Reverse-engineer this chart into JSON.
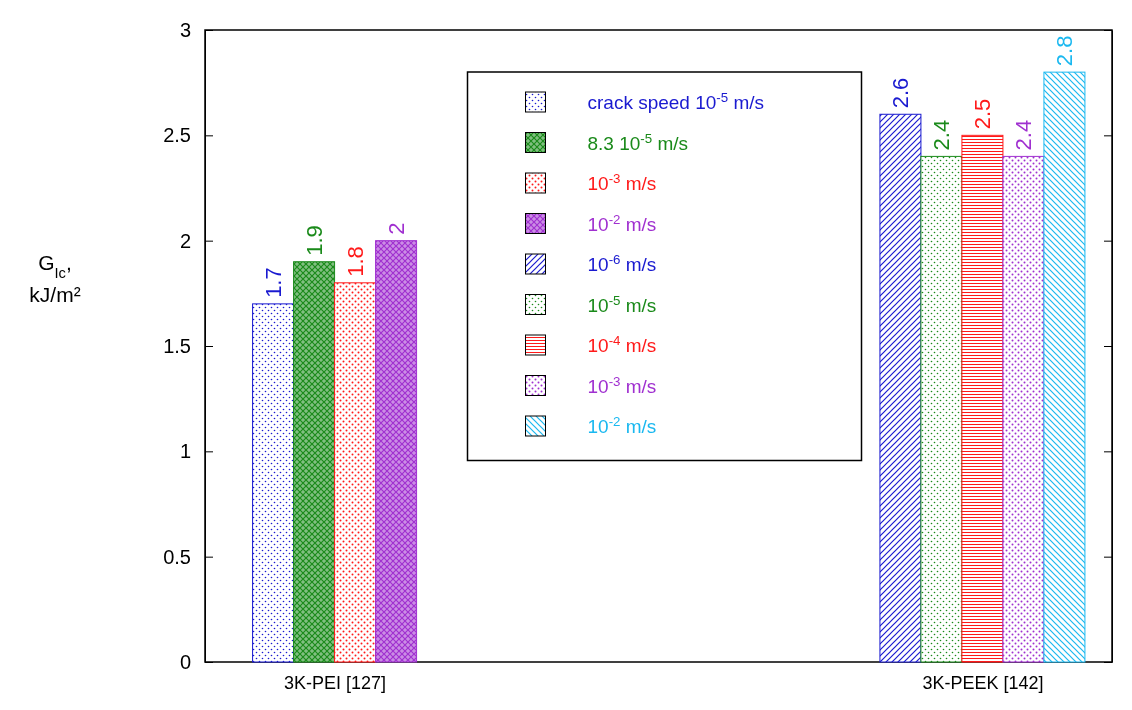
{
  "chart_data": {
    "type": "bar",
    "ylabel": "G$_{Ic}$, kJ/m²",
    "categories": [
      "3K-PEI [127]",
      "3K-PEEK [142]"
    ],
    "series": [
      {
        "name": "crack speed 10$^{-5}$ m/s",
        "color": "#1a1ad0",
        "values": [
          1.7,
          null
        ]
      },
      {
        "name": "8.3 10$^{-5}$ m/s",
        "color": "#1a8a1a",
        "values": [
          1.9,
          null
        ]
      },
      {
        "name": "10$^{-3}$ m/s",
        "color": "#ff1a1a",
        "values": [
          1.8,
          null
        ]
      },
      {
        "name": "10$^{-2}$ m/s",
        "color": "#a030d0",
        "values": [
          2,
          null
        ]
      },
      {
        "name": "10$^{-6}$ m/s",
        "color": "#1a1ad0",
        "values": [
          null,
          2.6
        ]
      },
      {
        "name": "10$^{-5}$ m/s",
        "color": "#1a8a1a",
        "values": [
          null,
          2.4
        ]
      },
      {
        "name": "10$^{-4}$ m/s",
        "color": "#ff1a1a",
        "values": [
          null,
          2.5
        ]
      },
      {
        "name": "10$^{-3}$ m/s",
        "color": "#a030d0",
        "values": [
          null,
          2.4
        ]
      },
      {
        "name": "10$^{-2}$ m/s",
        "color": "#1ab8f0",
        "values": [
          null,
          2.8
        ]
      }
    ],
    "ylim": [
      0,
      3
    ],
    "yticks": [
      0,
      0.5,
      1,
      1.5,
      2,
      2.5,
      3
    ],
    "data_labels": true,
    "legend": "top",
    "grid": false
  }
}
